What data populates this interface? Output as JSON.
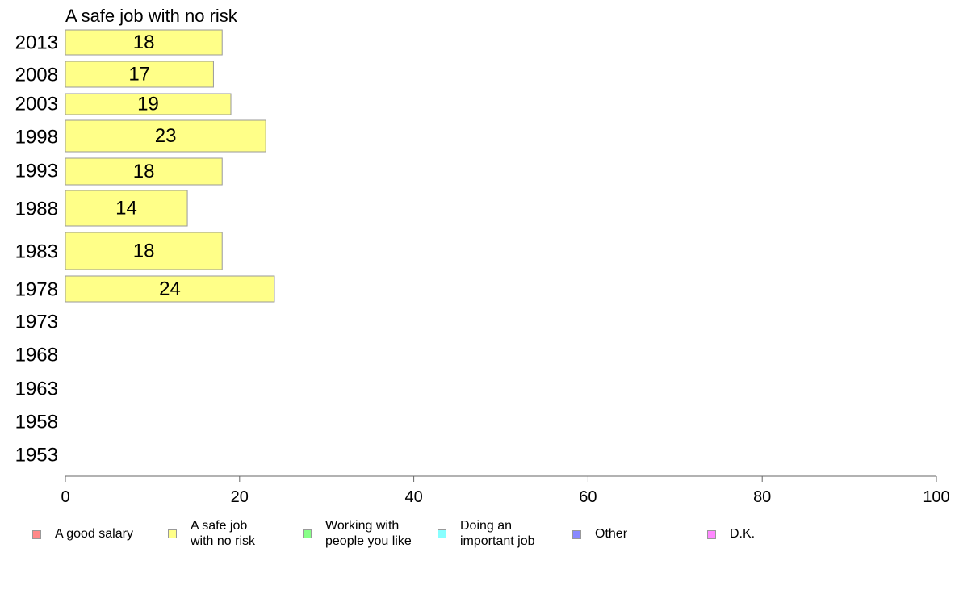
{
  "chart_data": {
    "type": "bar",
    "orientation": "horizontal",
    "title": "A safe job with no risk",
    "categories": [
      "2013",
      "2008",
      "2003",
      "1998",
      "1993",
      "1988",
      "1983",
      "1978",
      "1973",
      "1968",
      "1963",
      "1958",
      "1953"
    ],
    "series": [
      {
        "name": "A safe job with no risk",
        "values": [
          18,
          17,
          19,
          23,
          18,
          14,
          18,
          24,
          null,
          null,
          null,
          null,
          null
        ],
        "color": "#ffff88"
      }
    ],
    "xlim": [
      0,
      100
    ],
    "xticks": [
      0,
      20,
      40,
      60,
      80,
      100
    ],
    "xlabel": "",
    "ylabel": "",
    "grid": false,
    "legend_position": "bottom"
  },
  "legend": [
    {
      "label": "A good salary",
      "color": "#ff8888"
    },
    {
      "label": "A safe job\nwith no risk",
      "color": "#ffff88"
    },
    {
      "label": "Working with\npeople you like",
      "color": "#88ff88"
    },
    {
      "label": "Doing an\nimportant job",
      "color": "#88ffff"
    },
    {
      "label": "Other",
      "color": "#8888ff"
    },
    {
      "label": "D.K.",
      "color": "#ff88ff"
    }
  ]
}
